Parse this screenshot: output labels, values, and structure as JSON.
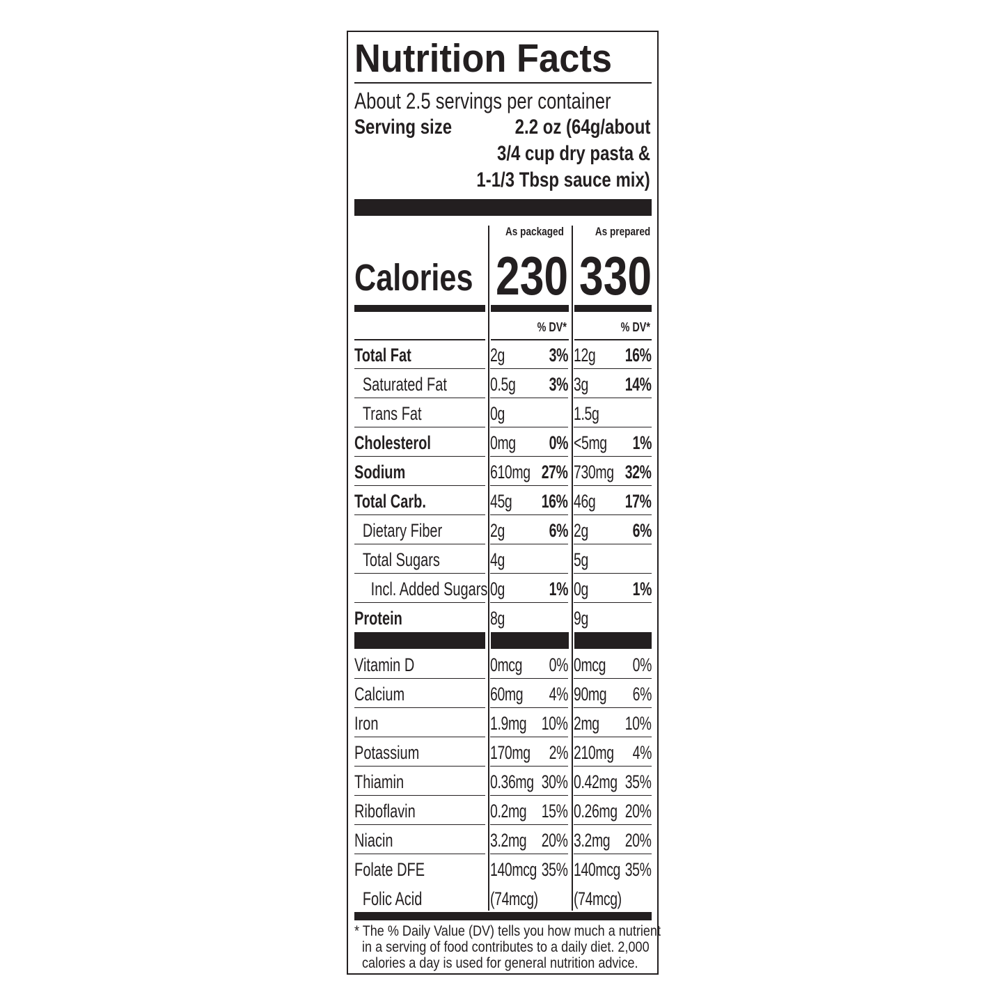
{
  "title": "Nutrition Facts",
  "servings_per_container": "About 2.5 servings per container",
  "serving_size": {
    "label": "Serving size",
    "lines": [
      "2.2 oz (64g/about",
      "3/4 cup dry pasta &",
      "1-1/3 Tbsp sauce mix)"
    ]
  },
  "columns": [
    "As packaged",
    "As prepared"
  ],
  "calories": {
    "label": "Calories",
    "packaged": "230",
    "prepared": "330"
  },
  "dv_header": "% DV*",
  "nutrients": [
    {
      "label": "Total Fat",
      "bold": true,
      "indent": 0,
      "pkg_amt": "2g",
      "pkg_dv": "3%",
      "prep_amt": "12g",
      "prep_dv": "16%"
    },
    {
      "label": "Saturated Fat",
      "bold": false,
      "indent": 1,
      "pkg_amt": "0.5g",
      "pkg_dv": "3%",
      "prep_amt": "3g",
      "prep_dv": "14%"
    },
    {
      "label": "Trans Fat",
      "bold": false,
      "indent": 1,
      "pkg_amt": "0g",
      "pkg_dv": "",
      "prep_amt": "1.5g",
      "prep_dv": ""
    },
    {
      "label": "Cholesterol",
      "bold": true,
      "indent": 0,
      "pkg_amt": "0mg",
      "pkg_dv": "0%",
      "prep_amt": "<5mg",
      "prep_dv": "1%"
    },
    {
      "label": "Sodium",
      "bold": true,
      "indent": 0,
      "pkg_amt": "610mg",
      "pkg_dv": "27%",
      "prep_amt": "730mg",
      "prep_dv": "32%"
    },
    {
      "label": "Total Carb.",
      "bold": true,
      "indent": 0,
      "pkg_amt": "45g",
      "pkg_dv": "16%",
      "prep_amt": "46g",
      "prep_dv": "17%"
    },
    {
      "label": "Dietary Fiber",
      "bold": false,
      "indent": 1,
      "pkg_amt": "2g",
      "pkg_dv": "6%",
      "prep_amt": "2g",
      "prep_dv": "6%"
    },
    {
      "label": "Total Sugars",
      "bold": false,
      "indent": 1,
      "pkg_amt": "4g",
      "pkg_dv": "",
      "prep_amt": "5g",
      "prep_dv": ""
    },
    {
      "label": "Incl. Added Sugars",
      "bold": false,
      "indent": 2,
      "pkg_amt": "0g",
      "pkg_dv": "1%",
      "prep_amt": "0g",
      "prep_dv": "1%"
    },
    {
      "label": "Protein",
      "bold": true,
      "indent": 0,
      "pkg_amt": "8g",
      "pkg_dv": "",
      "prep_amt": "9g",
      "prep_dv": ""
    }
  ],
  "vitamins": [
    {
      "label": "Vitamin D",
      "indent": 0,
      "pkg_amt": "0mcg",
      "pkg_dv": "0%",
      "prep_amt": "0mcg",
      "prep_dv": "0%"
    },
    {
      "label": "Calcium",
      "indent": 0,
      "pkg_amt": "60mg",
      "pkg_dv": "4%",
      "prep_amt": "90mg",
      "prep_dv": "6%"
    },
    {
      "label": "Iron",
      "indent": 0,
      "pkg_amt": "1.9mg",
      "pkg_dv": "10%",
      "prep_amt": "2mg",
      "prep_dv": "10%"
    },
    {
      "label": "Potassium",
      "indent": 0,
      "pkg_amt": "170mg",
      "pkg_dv": "2%",
      "prep_amt": "210mg",
      "prep_dv": "4%"
    },
    {
      "label": "Thiamin",
      "indent": 0,
      "pkg_amt": "0.36mg",
      "pkg_dv": "30%",
      "prep_amt": "0.42mg",
      "prep_dv": "35%"
    },
    {
      "label": "Riboflavin",
      "indent": 0,
      "pkg_amt": "0.2mg",
      "pkg_dv": "15%",
      "prep_amt": "0.26mg",
      "prep_dv": "20%"
    },
    {
      "label": "Niacin",
      "indent": 0,
      "pkg_amt": "3.2mg",
      "pkg_dv": "20%",
      "prep_amt": "3.2mg",
      "prep_dv": "20%"
    },
    {
      "label": "Folate DFE",
      "indent": 0,
      "pkg_amt": "140mcg",
      "pkg_dv": "35%",
      "prep_amt": "140mcg",
      "prep_dv": "35%"
    },
    {
      "label": "Folic Acid",
      "indent": 1,
      "pkg_amt": "(74mcg)",
      "pkg_dv": "",
      "prep_amt": "(74mcg)",
      "prep_dv": ""
    }
  ],
  "footnote": [
    "* The % Daily Value (DV) tells you how much a nutrient",
    "in a serving of food contributes to a daily diet. 2,000",
    "calories a day is used for general nutrition advice."
  ]
}
